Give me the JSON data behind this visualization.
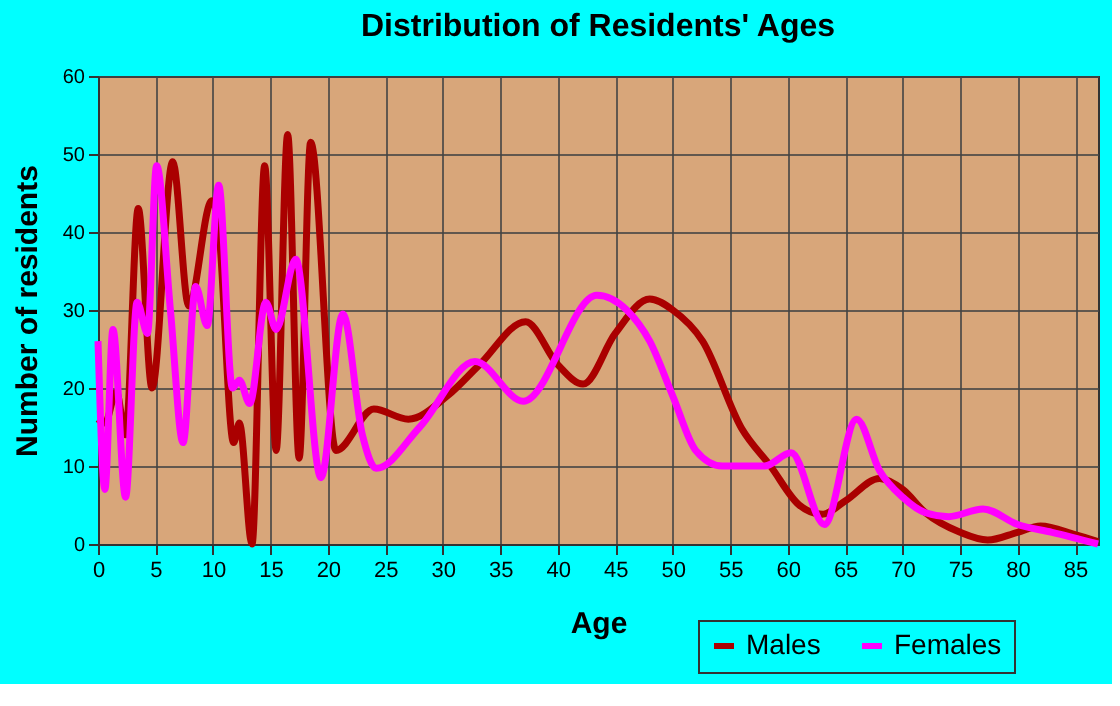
{
  "chart_data": {
    "type": "line",
    "title": "Distribution of Residents' Ages",
    "xlabel": "Age",
    "ylabel": "Number of residents",
    "xlim": [
      0,
      87
    ],
    "xticks": [
      0,
      5,
      10,
      15,
      20,
      25,
      30,
      35,
      40,
      45,
      50,
      55,
      60,
      65,
      70,
      75,
      80,
      85
    ],
    "ylim": [
      0,
      60
    ],
    "yticks": [
      0,
      10,
      20,
      30,
      40,
      50,
      60
    ],
    "grid": true,
    "legend": "bottom right",
    "marker": "none",
    "line_style": "solid",
    "series": [
      {
        "name": "Males",
        "color": "#aa0000",
        "x": [
          0,
          0.6,
          1.6,
          2.4,
          3.5,
          4.7,
          6.5,
          7.9,
          9.9,
          10.4,
          11.8,
          12.3,
          13.4,
          14.5,
          15.5,
          16.5,
          17.5,
          18.5,
          20.7,
          24,
          27,
          30.4,
          33.2,
          37.2,
          40,
          42.2,
          45,
          48,
          50,
          52.6,
          56,
          58.5,
          61,
          63,
          65,
          68,
          70,
          72,
          75,
          77.4,
          80,
          82,
          85,
          87
        ],
        "values": [
          16,
          15.5,
          19.5,
          14,
          43,
          20,
          49,
          30.5,
          44,
          42,
          13,
          15.5,
          0,
          48.5,
          12,
          52.5,
          11,
          51.5,
          12,
          17.3,
          16,
          19,
          23,
          28.5,
          23,
          20.5,
          27,
          31.4,
          30,
          26,
          14.8,
          10,
          5,
          3.8,
          5.5,
          8.4,
          7,
          4,
          1.5,
          0.5,
          1.5,
          2.3,
          1.2,
          0.3
        ]
      },
      {
        "name": "Females",
        "color": "#ff00ff",
        "x": [
          0,
          0.6,
          1.3,
          2.4,
          3.4,
          4.3,
          5.1,
          6.3,
          7.4,
          8.5,
          9.5,
          10.5,
          11.7,
          12.3,
          13.2,
          14.6,
          15.5,
          17.2,
          19.4,
          21.3,
          23,
          24.2,
          28,
          32.8,
          37,
          43.4,
          46,
          48,
          50,
          52,
          54.3,
          58,
          60.3,
          63.2,
          66,
          68,
          70,
          72,
          74,
          77,
          80,
          83,
          87
        ],
        "values": [
          26,
          7,
          27.5,
          6,
          31,
          27,
          48.5,
          30,
          13,
          33,
          28,
          46,
          20,
          21,
          18,
          31,
          27.5,
          36.5,
          8.5,
          29.5,
          14,
          9.7,
          15,
          23.4,
          18.3,
          31.9,
          30,
          26,
          19,
          12,
          10,
          10,
          11.7,
          2.5,
          16,
          9.4,
          6,
          4,
          3.5,
          4.5,
          2.5,
          1.5,
          0
        ]
      }
    ]
  }
}
